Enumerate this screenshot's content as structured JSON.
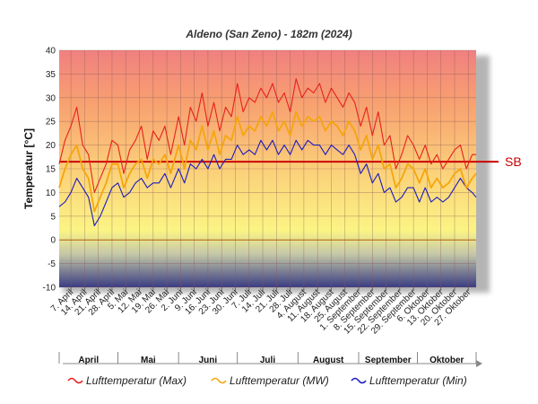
{
  "chart_data": {
    "type": "line",
    "title": "Aldeno (San Zeno) - 182m (2024)",
    "ylabel": "Temperatur [°C]",
    "xlabel": "",
    "ylim": [
      -10,
      40
    ],
    "yticks": [
      40,
      35,
      30,
      25,
      20,
      15,
      10,
      5,
      0,
      -5,
      -10
    ],
    "grid": true,
    "x_start": "2024-04-01",
    "x_end": "2024-10-31",
    "x_tick_dates": [
      "2024-04-07",
      "2024-04-14",
      "2024-04-21",
      "2024-04-28",
      "2024-05-05",
      "2024-05-12",
      "2024-05-19",
      "2024-05-26",
      "2024-06-02",
      "2024-06-09",
      "2024-06-16",
      "2024-06-23",
      "2024-06-30",
      "2024-07-07",
      "2024-07-14",
      "2024-07-21",
      "2024-07-28",
      "2024-08-04",
      "2024-08-11",
      "2024-08-18",
      "2024-08-25",
      "2024-09-01",
      "2024-09-08",
      "2024-09-15",
      "2024-09-22",
      "2024-09-29",
      "2024-10-06",
      "2024-10-13",
      "2024-10-20",
      "2024-10-27"
    ],
    "x_tick_labels": [
      "7. April",
      "14. April",
      "21. April",
      "28. April",
      "5. Mai",
      "12. Mai",
      "19. Mai",
      "26. Mai",
      "2. Juni",
      "9. Juni",
      "16. Juni",
      "23. Juni",
      "30. Juni",
      "7. Juli",
      "14. Juli",
      "21. Juli",
      "28. Juli",
      "4. August",
      "11. August",
      "18. August",
      "25. August",
      "1. September",
      "8. September",
      "15. September",
      "22. September",
      "29. September",
      "6. Oktober",
      "13. Oktober",
      "20. Oktober",
      "27. Oktober"
    ],
    "months": [
      "April",
      "Mai",
      "Juni",
      "Juli",
      "August",
      "September",
      "Oktober"
    ],
    "reference_line": {
      "label": "SB",
      "value": 16.5,
      "color": "#cc0000"
    },
    "series": [
      {
        "name": "Lufttemperatur (Max)",
        "color": "#e8201e",
        "x": [
          "2024-04-01",
          "2024-04-04",
          "2024-04-07",
          "2024-04-10",
          "2024-04-13",
          "2024-04-16",
          "2024-04-19",
          "2024-04-22",
          "2024-04-25",
          "2024-04-28",
          "2024-05-01",
          "2024-05-04",
          "2024-05-07",
          "2024-05-10",
          "2024-05-13",
          "2024-05-16",
          "2024-05-19",
          "2024-05-22",
          "2024-05-25",
          "2024-05-28",
          "2024-06-01",
          "2024-06-04",
          "2024-06-07",
          "2024-06-10",
          "2024-06-13",
          "2024-06-16",
          "2024-06-19",
          "2024-06-22",
          "2024-06-25",
          "2024-06-28",
          "2024-07-01",
          "2024-07-04",
          "2024-07-07",
          "2024-07-10",
          "2024-07-13",
          "2024-07-16",
          "2024-07-19",
          "2024-07-22",
          "2024-07-25",
          "2024-07-28",
          "2024-07-31",
          "2024-08-03",
          "2024-08-06",
          "2024-08-09",
          "2024-08-12",
          "2024-08-15",
          "2024-08-18",
          "2024-08-21",
          "2024-08-24",
          "2024-08-27",
          "2024-08-30",
          "2024-09-02",
          "2024-09-05",
          "2024-09-08",
          "2024-09-11",
          "2024-09-14",
          "2024-09-17",
          "2024-09-20",
          "2024-09-23",
          "2024-09-26",
          "2024-09-29",
          "2024-10-02",
          "2024-10-05",
          "2024-10-08",
          "2024-10-11",
          "2024-10-14",
          "2024-10-17",
          "2024-10-20",
          "2024-10-23",
          "2024-10-26",
          "2024-10-29",
          "2024-10-31"
        ],
        "values": [
          16,
          21,
          24,
          28,
          20,
          18,
          10,
          13,
          16,
          21,
          20,
          14,
          19,
          21,
          24,
          17,
          23,
          21,
          24,
          18,
          26,
          20,
          28,
          25,
          31,
          24,
          29,
          23,
          28,
          26,
          33,
          27,
          30,
          29,
          32,
          30,
          33,
          29,
          31,
          27,
          34,
          30,
          32,
          31,
          33,
          29,
          32,
          30,
          28,
          31,
          29,
          24,
          28,
          22,
          27,
          20,
          22,
          15,
          18,
          22,
          20,
          17,
          20,
          16,
          18,
          15,
          17,
          19,
          20,
          15,
          18,
          18
        ]
      },
      {
        "name": "Lufttemperatur (MW)",
        "color": "#f5a60c",
        "x": [
          "2024-04-01",
          "2024-04-04",
          "2024-04-07",
          "2024-04-10",
          "2024-04-13",
          "2024-04-16",
          "2024-04-19",
          "2024-04-22",
          "2024-04-25",
          "2024-04-28",
          "2024-05-01",
          "2024-05-04",
          "2024-05-07",
          "2024-05-10",
          "2024-05-13",
          "2024-05-16",
          "2024-05-19",
          "2024-05-22",
          "2024-05-25",
          "2024-05-28",
          "2024-06-01",
          "2024-06-04",
          "2024-06-07",
          "2024-06-10",
          "2024-06-13",
          "2024-06-16",
          "2024-06-19",
          "2024-06-22",
          "2024-06-25",
          "2024-06-28",
          "2024-07-01",
          "2024-07-04",
          "2024-07-07",
          "2024-07-10",
          "2024-07-13",
          "2024-07-16",
          "2024-07-19",
          "2024-07-22",
          "2024-07-25",
          "2024-07-28",
          "2024-07-31",
          "2024-08-03",
          "2024-08-06",
          "2024-08-09",
          "2024-08-12",
          "2024-08-15",
          "2024-08-18",
          "2024-08-21",
          "2024-08-24",
          "2024-08-27",
          "2024-08-30",
          "2024-09-02",
          "2024-09-05",
          "2024-09-08",
          "2024-09-11",
          "2024-09-14",
          "2024-09-17",
          "2024-09-20",
          "2024-09-23",
          "2024-09-26",
          "2024-09-29",
          "2024-10-02",
          "2024-10-05",
          "2024-10-08",
          "2024-10-11",
          "2024-10-14",
          "2024-10-17",
          "2024-10-20",
          "2024-10-23",
          "2024-10-26",
          "2024-10-29",
          "2024-10-31"
        ],
        "values": [
          11,
          15,
          18,
          20,
          15,
          13,
          6,
          9,
          12,
          16,
          16,
          11,
          14,
          16,
          17,
          13,
          17,
          16,
          18,
          14,
          20,
          15,
          21,
          19,
          24,
          19,
          23,
          18,
          22,
          21,
          26,
          22,
          24,
          23,
          26,
          24,
          27,
          23,
          25,
          22,
          27,
          24,
          26,
          25,
          26,
          23,
          25,
          24,
          22,
          25,
          23,
          19,
          22,
          17,
          20,
          15,
          16,
          11,
          13,
          16,
          15,
          12,
          15,
          11,
          13,
          11,
          12,
          14,
          15,
          11,
          13,
          14
        ]
      },
      {
        "name": "Lufttemperatur (Min)",
        "color": "#1c1cbf",
        "x": [
          "2024-04-01",
          "2024-04-04",
          "2024-04-07",
          "2024-04-10",
          "2024-04-13",
          "2024-04-16",
          "2024-04-19",
          "2024-04-22",
          "2024-04-25",
          "2024-04-28",
          "2024-05-01",
          "2024-05-04",
          "2024-05-07",
          "2024-05-10",
          "2024-05-13",
          "2024-05-16",
          "2024-05-19",
          "2024-05-22",
          "2024-05-25",
          "2024-05-28",
          "2024-06-01",
          "2024-06-04",
          "2024-06-07",
          "2024-06-10",
          "2024-06-13",
          "2024-06-16",
          "2024-06-19",
          "2024-06-22",
          "2024-06-25",
          "2024-06-28",
          "2024-07-01",
          "2024-07-04",
          "2024-07-07",
          "2024-07-10",
          "2024-07-13",
          "2024-07-16",
          "2024-07-19",
          "2024-07-22",
          "2024-07-25",
          "2024-07-28",
          "2024-07-31",
          "2024-08-03",
          "2024-08-06",
          "2024-08-09",
          "2024-08-12",
          "2024-08-15",
          "2024-08-18",
          "2024-08-21",
          "2024-08-24",
          "2024-08-27",
          "2024-08-30",
          "2024-09-02",
          "2024-09-05",
          "2024-09-08",
          "2024-09-11",
          "2024-09-14",
          "2024-09-17",
          "2024-09-20",
          "2024-09-23",
          "2024-09-26",
          "2024-09-29",
          "2024-10-02",
          "2024-10-05",
          "2024-10-08",
          "2024-10-11",
          "2024-10-14",
          "2024-10-17",
          "2024-10-20",
          "2024-10-23",
          "2024-10-26",
          "2024-10-29",
          "2024-10-31"
        ],
        "values": [
          7,
          8,
          10,
          13,
          11,
          9,
          3,
          5,
          8,
          11,
          12,
          9,
          10,
          12,
          13,
          11,
          12,
          12,
          14,
          11,
          15,
          12,
          16,
          15,
          17,
          15,
          18,
          15,
          17,
          17,
          20,
          18,
          19,
          18,
          21,
          19,
          21,
          18,
          20,
          18,
          21,
          19,
          21,
          20,
          20,
          18,
          20,
          19,
          18,
          20,
          18,
          14,
          16,
          12,
          14,
          10,
          11,
          8,
          9,
          11,
          11,
          8,
          11,
          8,
          9,
          8,
          9,
          11,
          13,
          11,
          10,
          9
        ]
      }
    ]
  }
}
